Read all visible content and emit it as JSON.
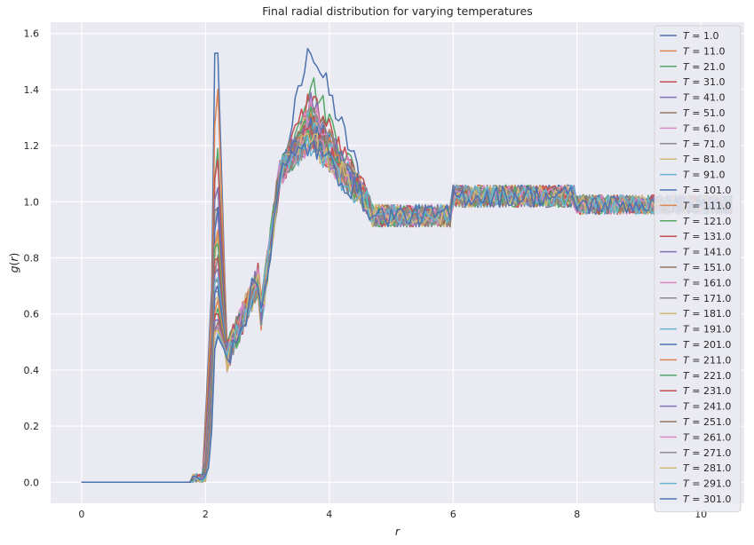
{
  "chart_data": {
    "type": "line",
    "title": "Final radial distribution for varying temperatures",
    "xlabel": "r",
    "ylabel": "g(r)",
    "xlim": [
      -0.5,
      10.7
    ],
    "ylim": [
      -0.075,
      1.64
    ],
    "xticks": [
      0,
      2,
      4,
      6,
      8,
      10
    ],
    "xtick_labels": [
      "0",
      "2",
      "4",
      "6",
      "8",
      "10"
    ],
    "yticks": [
      0.0,
      0.2,
      0.4,
      0.6,
      0.8,
      1.0,
      1.2,
      1.4,
      1.6
    ],
    "ytick_labels": [
      "0.0",
      "0.2",
      "0.4",
      "0.6",
      "0.8",
      "1.0",
      "1.2",
      "1.4",
      "1.6"
    ],
    "grid": true,
    "legend_position": "upper-right",
    "colors": [
      "#4c72b0",
      "#dd8452",
      "#55a868",
      "#c44e52",
      "#8172b3",
      "#937860",
      "#da8bc3",
      "#8c8c8c",
      "#ccb974",
      "#64b5cd"
    ],
    "background": "#eaeaf2",
    "series": [
      {
        "name": "T = 1.0",
        "legend_prefix": "T",
        "legend_suffix": " = 1.0",
        "peak1": 1.53,
        "peak2": 1.56
      },
      {
        "name": "T = 11.0",
        "legend_prefix": "T",
        "legend_suffix": " = 11.0",
        "peak1": 1.4,
        "peak2": 1.32
      },
      {
        "name": "T = 21.0",
        "legend_prefix": "T",
        "legend_suffix": " = 21.0",
        "peak1": 1.19,
        "peak2": 1.43
      },
      {
        "name": "T = 31.0",
        "legend_prefix": "T",
        "legend_suffix": " = 31.0",
        "peak1": 1.15,
        "peak2": 1.38
      },
      {
        "name": "T = 41.0",
        "legend_prefix": "T",
        "legend_suffix": " = 41.0",
        "peak1": 1.05,
        "peak2": 1.36
      },
      {
        "name": "T = 51.0",
        "legend_prefix": "T",
        "legend_suffix": " = 51.0",
        "peak1": 0.98,
        "peak2": 1.35
      },
      {
        "name": "T = 61.0",
        "legend_prefix": "T",
        "legend_suffix": " = 61.0",
        "peak1": 0.95,
        "peak2": 1.33
      },
      {
        "name": "T = 71.0",
        "legend_prefix": "T",
        "legend_suffix": " = 71.0",
        "peak1": 0.81,
        "peak2": 1.32
      },
      {
        "name": "T = 81.0",
        "legend_prefix": "T",
        "legend_suffix": " = 81.0",
        "peak1": 0.88,
        "peak2": 1.3
      },
      {
        "name": "T = 91.0",
        "legend_prefix": "T",
        "legend_suffix": " = 91.0",
        "peak1": 0.72,
        "peak2": 1.3
      },
      {
        "name": "T = 101.0",
        "legend_prefix": "T",
        "legend_suffix": " = 101.0",
        "peak1": 0.98,
        "peak2": 1.3
      },
      {
        "name": "T = 111.0",
        "legend_prefix": "T",
        "legend_suffix": " = 111.0",
        "peak1": 0.9,
        "peak2": 1.29
      },
      {
        "name": "T = 121.0",
        "legend_prefix": "T",
        "legend_suffix": " = 121.0",
        "peak1": 0.85,
        "peak2": 1.29
      },
      {
        "name": "T = 131.0",
        "legend_prefix": "T",
        "legend_suffix": " = 131.0",
        "peak1": 0.8,
        "peak2": 1.28
      },
      {
        "name": "T = 141.0",
        "legend_prefix": "T",
        "legend_suffix": " = 141.0",
        "peak1": 0.76,
        "peak2": 1.28
      },
      {
        "name": "T = 151.0",
        "legend_prefix": "T",
        "legend_suffix": " = 151.0",
        "peak1": 0.72,
        "peak2": 1.27
      },
      {
        "name": "T = 161.0",
        "legend_prefix": "T",
        "legend_suffix": " = 161.0",
        "peak1": 0.7,
        "peak2": 1.27
      },
      {
        "name": "T = 171.0",
        "legend_prefix": "T",
        "legend_suffix": " = 171.0",
        "peak1": 0.68,
        "peak2": 1.26
      },
      {
        "name": "T = 181.0",
        "legend_prefix": "T",
        "legend_suffix": " = 181.0",
        "peak1": 0.66,
        "peak2": 1.26
      },
      {
        "name": "T = 191.0",
        "legend_prefix": "T",
        "legend_suffix": " = 191.0",
        "peak1": 0.73,
        "peak2": 1.25
      },
      {
        "name": "T = 201.0",
        "legend_prefix": "T",
        "legend_suffix": " = 201.0",
        "peak1": 0.7,
        "peak2": 1.25
      },
      {
        "name": "T = 211.0",
        "legend_prefix": "T",
        "legend_suffix": " = 211.0",
        "peak1": 0.65,
        "peak2": 1.24
      },
      {
        "name": "T = 221.0",
        "legend_prefix": "T",
        "legend_suffix": " = 221.0",
        "peak1": 0.62,
        "peak2": 1.24
      },
      {
        "name": "T = 231.0",
        "legend_prefix": "T",
        "legend_suffix": " = 231.0",
        "peak1": 0.6,
        "peak2": 1.24
      },
      {
        "name": "T = 241.0",
        "legend_prefix": "T",
        "legend_suffix": " = 241.0",
        "peak1": 0.58,
        "peak2": 1.23
      },
      {
        "name": "T = 251.0",
        "legend_prefix": "T",
        "legend_suffix": " = 251.0",
        "peak1": 0.57,
        "peak2": 1.23
      },
      {
        "name": "T = 261.0",
        "legend_prefix": "T",
        "legend_suffix": " = 261.0",
        "peak1": 0.56,
        "peak2": 1.22
      },
      {
        "name": "T = 271.0",
        "legend_prefix": "T",
        "legend_suffix": " = 271.0",
        "peak1": 0.55,
        "peak2": 1.22
      },
      {
        "name": "T = 281.0",
        "legend_prefix": "T",
        "legend_suffix": " = 281.0",
        "peak1": 0.54,
        "peak2": 1.22
      },
      {
        "name": "T = 291.0",
        "legend_prefix": "T",
        "legend_suffix": " = 291.0",
        "peak1": 0.53,
        "peak2": 1.21
      },
      {
        "name": "T = 301.0",
        "legend_prefix": "T",
        "legend_suffix": " = 301.0",
        "peak1": 0.52,
        "peak2": 1.21
      }
    ]
  }
}
